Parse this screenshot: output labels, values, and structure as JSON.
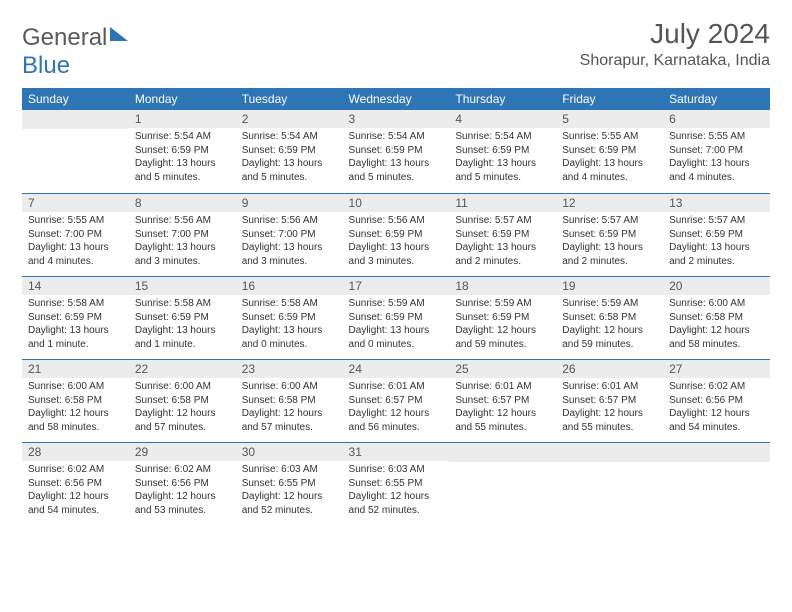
{
  "logo": {
    "part1": "General",
    "part2": "Blue"
  },
  "title": "July 2024",
  "location": "Shorapur, Karnataka, India",
  "day_headers": [
    "Sunday",
    "Monday",
    "Tuesday",
    "Wednesday",
    "Thursday",
    "Friday",
    "Saturday"
  ],
  "colors": {
    "header_bg": "#2e75b6",
    "header_fg": "#ffffff",
    "daynum_bg": "#ececec",
    "week_border": "#2e75b6",
    "text": "#333333",
    "title": "#555555"
  },
  "weeks": [
    [
      {
        "n": "",
        "sunrise": "",
        "sunset": "",
        "daylight": ""
      },
      {
        "n": "1",
        "sunrise": "5:54 AM",
        "sunset": "6:59 PM",
        "daylight": "13 hours and 5 minutes."
      },
      {
        "n": "2",
        "sunrise": "5:54 AM",
        "sunset": "6:59 PM",
        "daylight": "13 hours and 5 minutes."
      },
      {
        "n": "3",
        "sunrise": "5:54 AM",
        "sunset": "6:59 PM",
        "daylight": "13 hours and 5 minutes."
      },
      {
        "n": "4",
        "sunrise": "5:54 AM",
        "sunset": "6:59 PM",
        "daylight": "13 hours and 5 minutes."
      },
      {
        "n": "5",
        "sunrise": "5:55 AM",
        "sunset": "6:59 PM",
        "daylight": "13 hours and 4 minutes."
      },
      {
        "n": "6",
        "sunrise": "5:55 AM",
        "sunset": "7:00 PM",
        "daylight": "13 hours and 4 minutes."
      }
    ],
    [
      {
        "n": "7",
        "sunrise": "5:55 AM",
        "sunset": "7:00 PM",
        "daylight": "13 hours and 4 minutes."
      },
      {
        "n": "8",
        "sunrise": "5:56 AM",
        "sunset": "7:00 PM",
        "daylight": "13 hours and 3 minutes."
      },
      {
        "n": "9",
        "sunrise": "5:56 AM",
        "sunset": "7:00 PM",
        "daylight": "13 hours and 3 minutes."
      },
      {
        "n": "10",
        "sunrise": "5:56 AM",
        "sunset": "6:59 PM",
        "daylight": "13 hours and 3 minutes."
      },
      {
        "n": "11",
        "sunrise": "5:57 AM",
        "sunset": "6:59 PM",
        "daylight": "13 hours and 2 minutes."
      },
      {
        "n": "12",
        "sunrise": "5:57 AM",
        "sunset": "6:59 PM",
        "daylight": "13 hours and 2 minutes."
      },
      {
        "n": "13",
        "sunrise": "5:57 AM",
        "sunset": "6:59 PM",
        "daylight": "13 hours and 2 minutes."
      }
    ],
    [
      {
        "n": "14",
        "sunrise": "5:58 AM",
        "sunset": "6:59 PM",
        "daylight": "13 hours and 1 minute."
      },
      {
        "n": "15",
        "sunrise": "5:58 AM",
        "sunset": "6:59 PM",
        "daylight": "13 hours and 1 minute."
      },
      {
        "n": "16",
        "sunrise": "5:58 AM",
        "sunset": "6:59 PM",
        "daylight": "13 hours and 0 minutes."
      },
      {
        "n": "17",
        "sunrise": "5:59 AM",
        "sunset": "6:59 PM",
        "daylight": "13 hours and 0 minutes."
      },
      {
        "n": "18",
        "sunrise": "5:59 AM",
        "sunset": "6:59 PM",
        "daylight": "12 hours and 59 minutes."
      },
      {
        "n": "19",
        "sunrise": "5:59 AM",
        "sunset": "6:58 PM",
        "daylight": "12 hours and 59 minutes."
      },
      {
        "n": "20",
        "sunrise": "6:00 AM",
        "sunset": "6:58 PM",
        "daylight": "12 hours and 58 minutes."
      }
    ],
    [
      {
        "n": "21",
        "sunrise": "6:00 AM",
        "sunset": "6:58 PM",
        "daylight": "12 hours and 58 minutes."
      },
      {
        "n": "22",
        "sunrise": "6:00 AM",
        "sunset": "6:58 PM",
        "daylight": "12 hours and 57 minutes."
      },
      {
        "n": "23",
        "sunrise": "6:00 AM",
        "sunset": "6:58 PM",
        "daylight": "12 hours and 57 minutes."
      },
      {
        "n": "24",
        "sunrise": "6:01 AM",
        "sunset": "6:57 PM",
        "daylight": "12 hours and 56 minutes."
      },
      {
        "n": "25",
        "sunrise": "6:01 AM",
        "sunset": "6:57 PM",
        "daylight": "12 hours and 55 minutes."
      },
      {
        "n": "26",
        "sunrise": "6:01 AM",
        "sunset": "6:57 PM",
        "daylight": "12 hours and 55 minutes."
      },
      {
        "n": "27",
        "sunrise": "6:02 AM",
        "sunset": "6:56 PM",
        "daylight": "12 hours and 54 minutes."
      }
    ],
    [
      {
        "n": "28",
        "sunrise": "6:02 AM",
        "sunset": "6:56 PM",
        "daylight": "12 hours and 54 minutes."
      },
      {
        "n": "29",
        "sunrise": "6:02 AM",
        "sunset": "6:56 PM",
        "daylight": "12 hours and 53 minutes."
      },
      {
        "n": "30",
        "sunrise": "6:03 AM",
        "sunset": "6:55 PM",
        "daylight": "12 hours and 52 minutes."
      },
      {
        "n": "31",
        "sunrise": "6:03 AM",
        "sunset": "6:55 PM",
        "daylight": "12 hours and 52 minutes."
      },
      {
        "n": "",
        "sunrise": "",
        "sunset": "",
        "daylight": ""
      },
      {
        "n": "",
        "sunrise": "",
        "sunset": "",
        "daylight": ""
      },
      {
        "n": "",
        "sunrise": "",
        "sunset": "",
        "daylight": ""
      }
    ]
  ],
  "labels": {
    "sunrise": "Sunrise:",
    "sunset": "Sunset:",
    "daylight": "Daylight:"
  }
}
